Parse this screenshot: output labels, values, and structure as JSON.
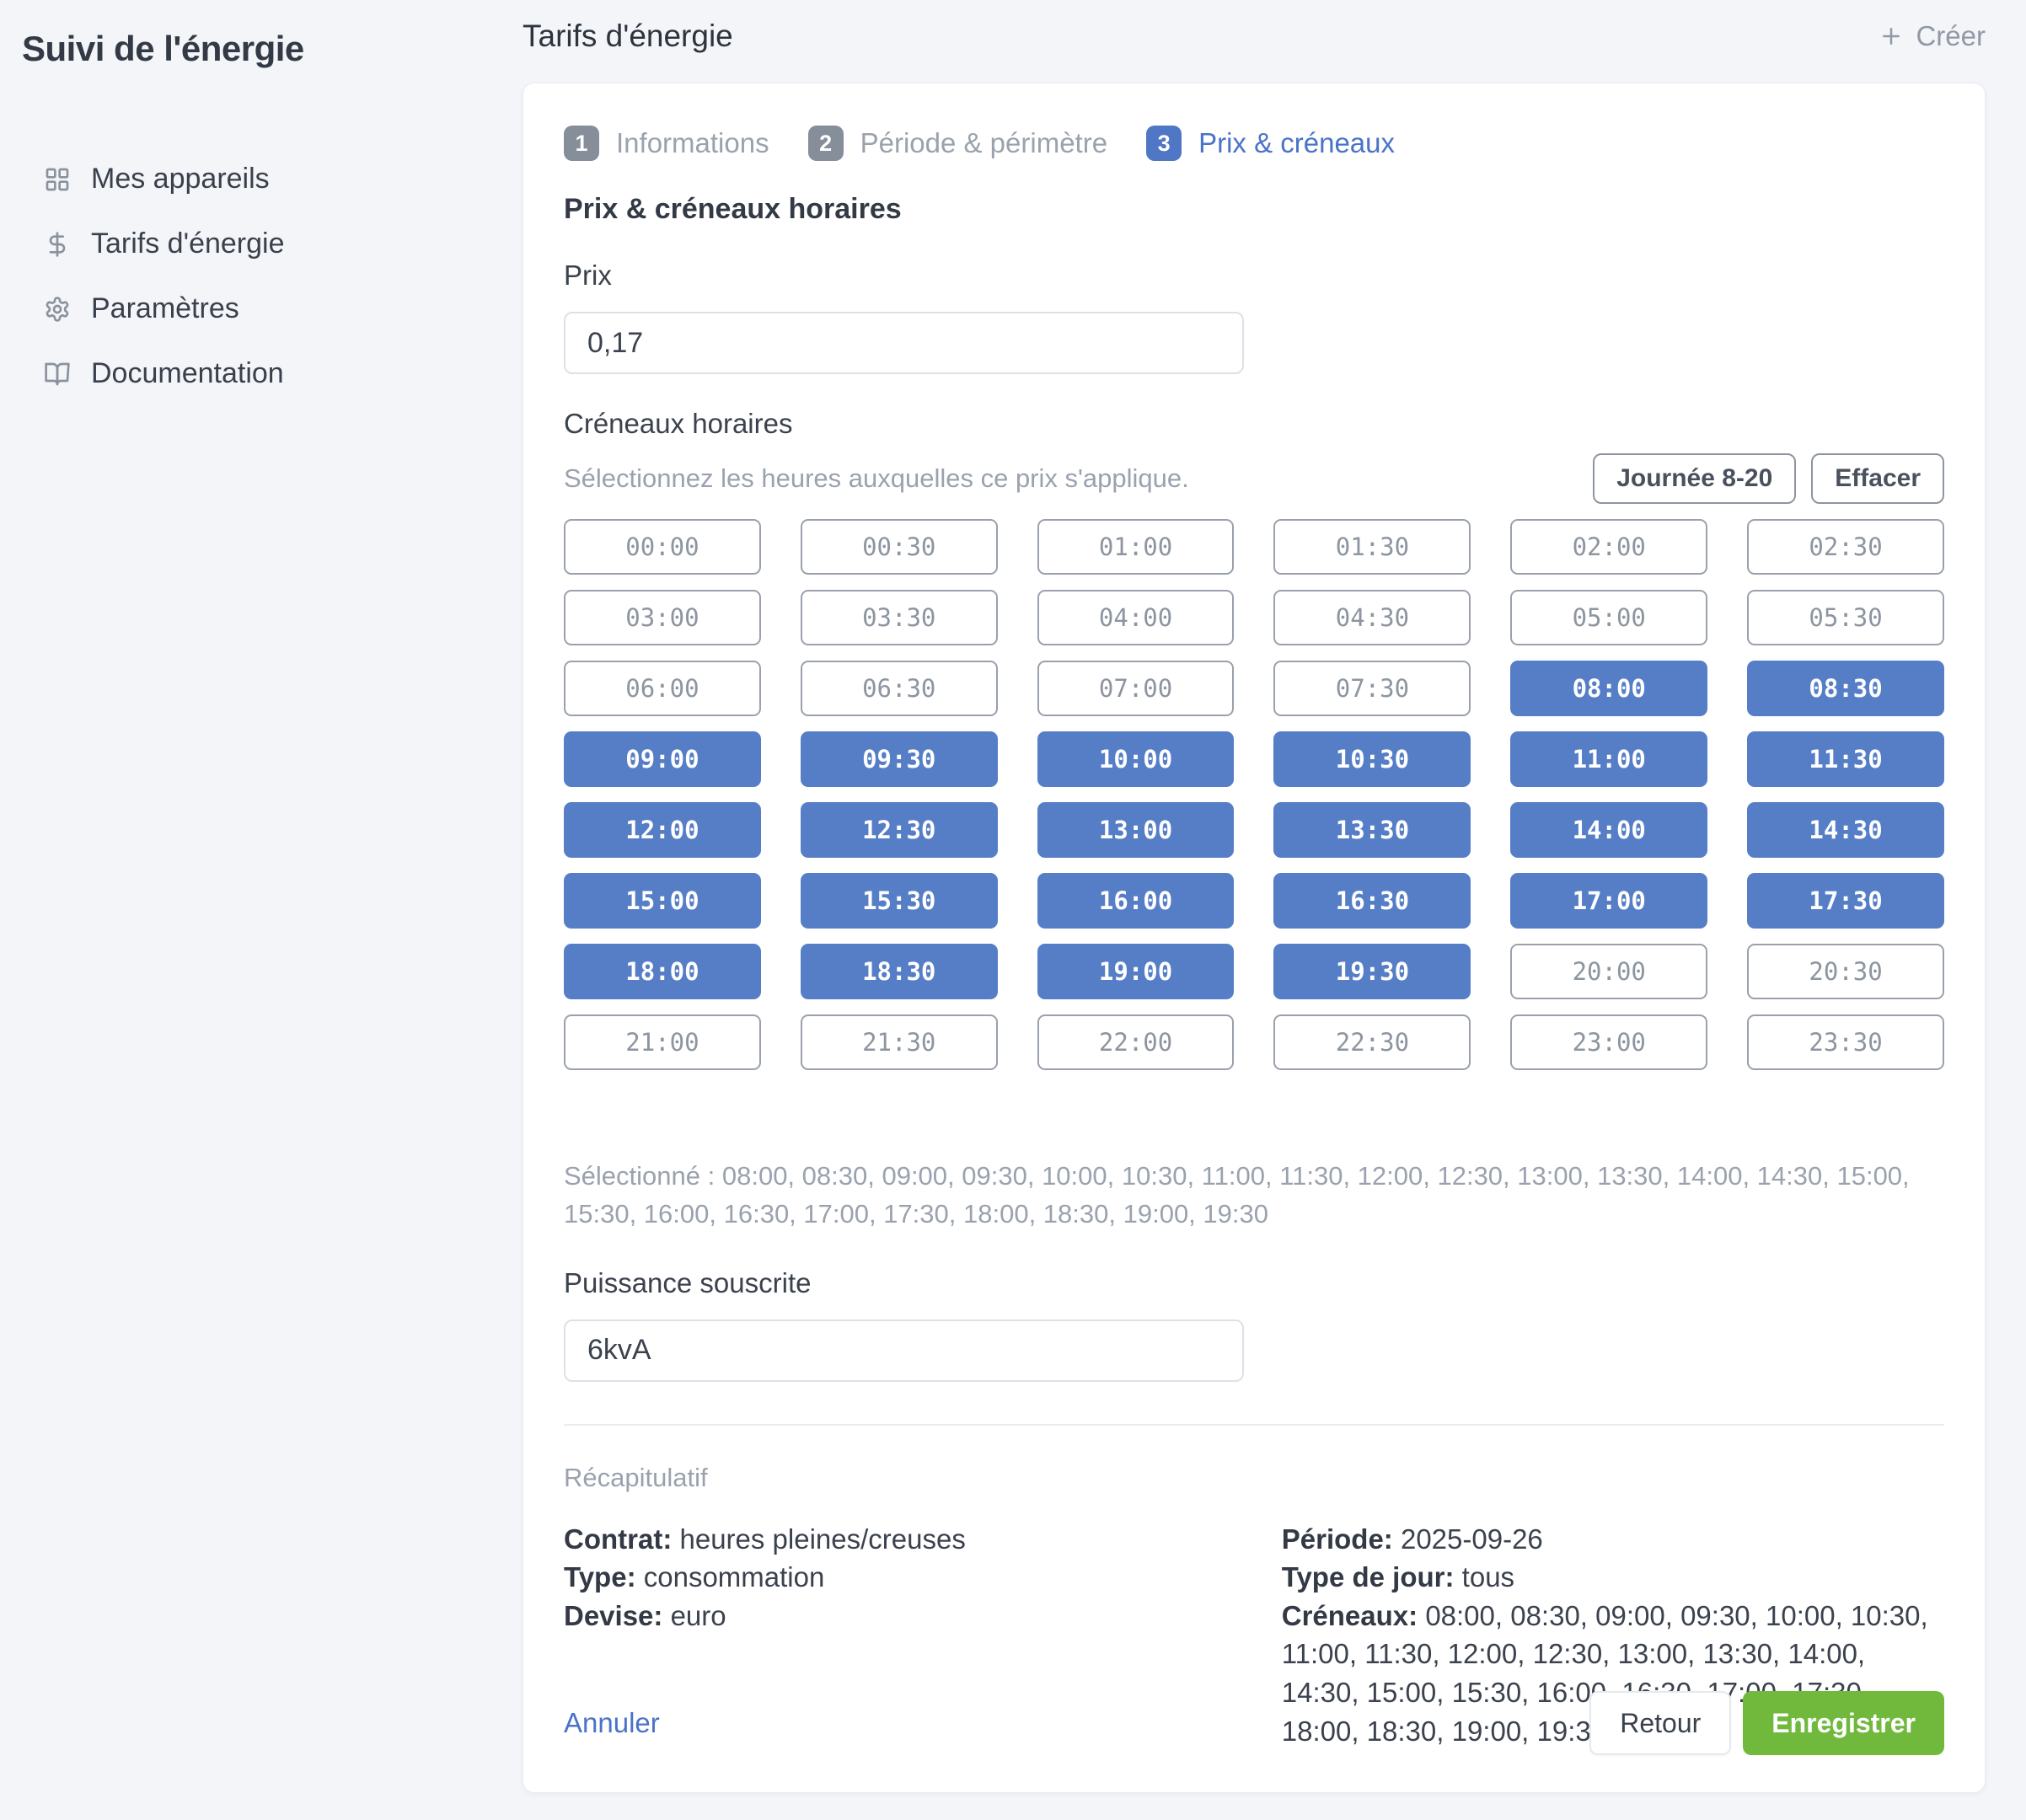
{
  "sidebar": {
    "title": "Suivi de l'énergie",
    "items": [
      {
        "icon": "grid-icon",
        "label": "Mes appareils"
      },
      {
        "icon": "dollar-icon",
        "label": "Tarifs d'énergie"
      },
      {
        "icon": "gear-icon",
        "label": "Paramètres"
      },
      {
        "icon": "book-open-icon",
        "label": "Documentation"
      }
    ]
  },
  "header": {
    "title": "Tarifs d'énergie",
    "create_label": "Créer"
  },
  "wizard": {
    "steps": [
      {
        "number": "1",
        "label": "Informations"
      },
      {
        "number": "2",
        "label": "Période & périmètre"
      },
      {
        "number": "3",
        "label": "Prix & créneaux"
      }
    ],
    "active_step": 3,
    "section_title": "Prix & créneaux horaires"
  },
  "price": {
    "label": "Prix",
    "value": "0,17"
  },
  "slots": {
    "label": "Créneaux horaires",
    "hint": "Sélectionnez les heures auxquelles ce prix s'applique.",
    "preset_button": "Journée 8-20",
    "clear_button": "Effacer",
    "items": [
      {
        "time": "00:00",
        "selected": false
      },
      {
        "time": "00:30",
        "selected": false
      },
      {
        "time": "01:00",
        "selected": false
      },
      {
        "time": "01:30",
        "selected": false
      },
      {
        "time": "02:00",
        "selected": false
      },
      {
        "time": "02:30",
        "selected": false
      },
      {
        "time": "03:00",
        "selected": false
      },
      {
        "time": "03:30",
        "selected": false
      },
      {
        "time": "04:00",
        "selected": false
      },
      {
        "time": "04:30",
        "selected": false
      },
      {
        "time": "05:00",
        "selected": false
      },
      {
        "time": "05:30",
        "selected": false
      },
      {
        "time": "06:00",
        "selected": false
      },
      {
        "time": "06:30",
        "selected": false
      },
      {
        "time": "07:00",
        "selected": false
      },
      {
        "time": "07:30",
        "selected": false
      },
      {
        "time": "08:00",
        "selected": true
      },
      {
        "time": "08:30",
        "selected": true
      },
      {
        "time": "09:00",
        "selected": true
      },
      {
        "time": "09:30",
        "selected": true
      },
      {
        "time": "10:00",
        "selected": true
      },
      {
        "time": "10:30",
        "selected": true
      },
      {
        "time": "11:00",
        "selected": true
      },
      {
        "time": "11:30",
        "selected": true
      },
      {
        "time": "12:00",
        "selected": true
      },
      {
        "time": "12:30",
        "selected": true
      },
      {
        "time": "13:00",
        "selected": true
      },
      {
        "time": "13:30",
        "selected": true
      },
      {
        "time": "14:00",
        "selected": true
      },
      {
        "time": "14:30",
        "selected": true
      },
      {
        "time": "15:00",
        "selected": true
      },
      {
        "time": "15:30",
        "selected": true
      },
      {
        "time": "16:00",
        "selected": true
      },
      {
        "time": "16:30",
        "selected": true
      },
      {
        "time": "17:00",
        "selected": true
      },
      {
        "time": "17:30",
        "selected": true
      },
      {
        "time": "18:00",
        "selected": true
      },
      {
        "time": "18:30",
        "selected": true
      },
      {
        "time": "19:00",
        "selected": true
      },
      {
        "time": "19:30",
        "selected": true
      },
      {
        "time": "20:00",
        "selected": false
      },
      {
        "time": "20:30",
        "selected": false
      },
      {
        "time": "21:00",
        "selected": false
      },
      {
        "time": "21:30",
        "selected": false
      },
      {
        "time": "22:00",
        "selected": false
      },
      {
        "time": "22:30",
        "selected": false
      },
      {
        "time": "23:00",
        "selected": false
      },
      {
        "time": "23:30",
        "selected": false
      }
    ],
    "selected_label": "Sélectionné :",
    "selected_times": "08:00, 08:30, 09:00, 09:30, 10:00, 10:30, 11:00, 11:30, 12:00, 12:30, 13:00, 13:30, 14:00, 14:30, 15:00, 15:30, 16:00, 16:30, 17:00, 17:30, 18:00, 18:30, 19:00, 19:30"
  },
  "power": {
    "label": "Puissance souscrite",
    "value": "6kvA"
  },
  "summary": {
    "title": "Récapitulatif",
    "left": [
      {
        "label": "Contrat:",
        "value": "heures pleines/creuses"
      },
      {
        "label": "Type:",
        "value": "consommation"
      },
      {
        "label": "Devise:",
        "value": "euro"
      }
    ],
    "right": [
      {
        "label": "Période:",
        "value": "2025-09-26"
      },
      {
        "label": "Type de jour:",
        "value": "tous"
      },
      {
        "label": "Créneaux:",
        "value": "08:00, 08:30, 09:00, 09:30, 10:00, 10:30, 11:00, 11:30, 12:00, 12:30, 13:00, 13:30, 14:00, 14:30, 15:00, 15:30, 16:00, 16:30, 17:00, 17:30, 18:00, 18:30, 19:00, 19:30"
      }
    ]
  },
  "footer": {
    "cancel": "Annuler",
    "back": "Retour",
    "save": "Enregistrer"
  },
  "colors": {
    "accent_blue": "#567ec7",
    "active_step_blue": "#5076c6",
    "link_blue": "#4a73c8",
    "save_green": "#71b93d",
    "muted_gray": "#9aa2ae",
    "page_background": "#f3f5f8"
  }
}
